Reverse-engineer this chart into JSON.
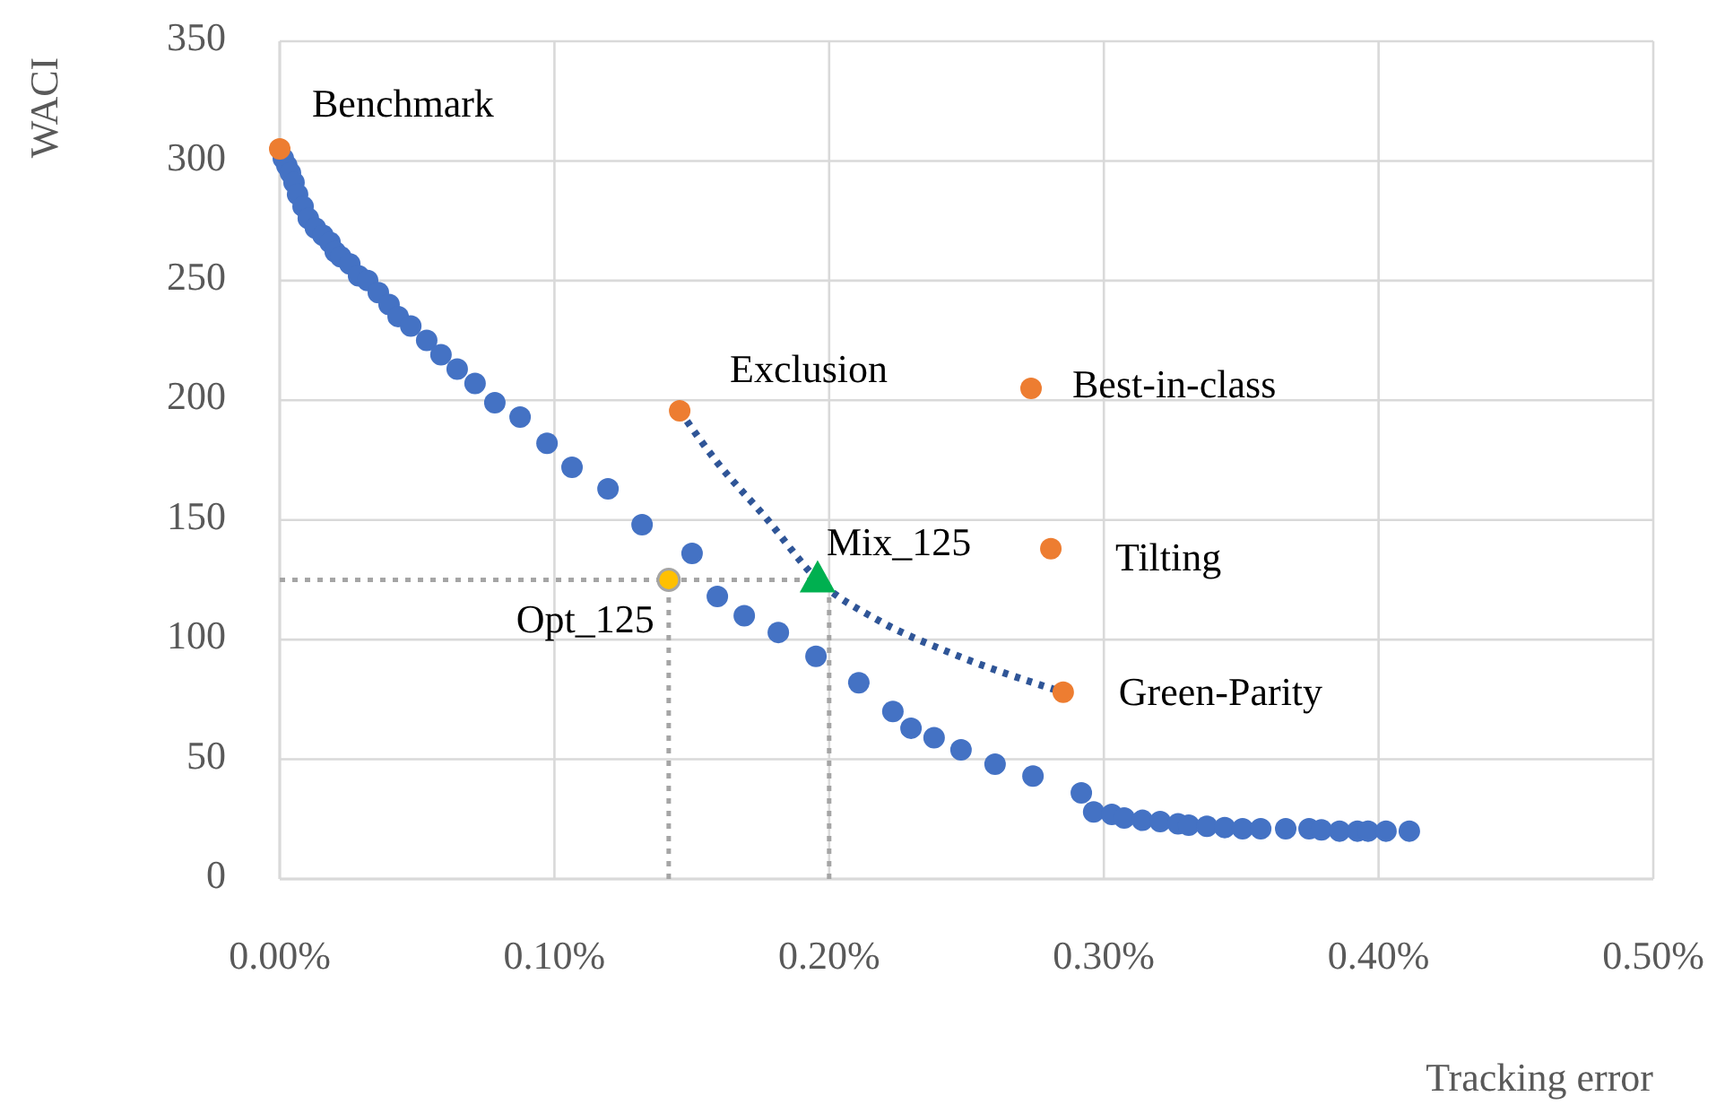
{
  "chart_data": {
    "type": "scatter",
    "xlabel": "Tracking error",
    "ylabel": "WACI",
    "xlim": [
      0,
      0.5
    ],
    "ylim": [
      0,
      350
    ],
    "xticks": [
      {
        "value": 0,
        "label": "0.00%"
      },
      {
        "value": 0.1,
        "label": "0.10%"
      },
      {
        "value": 0.2,
        "label": "0.20%"
      },
      {
        "value": 0.3,
        "label": "0.30%"
      },
      {
        "value": 0.4,
        "label": "0.40%"
      },
      {
        "value": 0.5,
        "label": "0.50%"
      }
    ],
    "yticks": [
      0,
      50,
      100,
      150,
      200,
      250,
      300,
      350
    ],
    "grid": true,
    "series": [
      {
        "marker": "circle",
        "color": "#4472c4",
        "x": [
          0.0013,
          0.0026,
          0.0039,
          0.0052,
          0.0065,
          0.0085,
          0.0104,
          0.013,
          0.0157,
          0.0183,
          0.0202,
          0.0222,
          0.0255,
          0.0287,
          0.032,
          0.0359,
          0.0398,
          0.0431,
          0.0477,
          0.0535,
          0.0587,
          0.0646,
          0.0711,
          0.0783,
          0.0875,
          0.0973,
          0.1064,
          0.1195,
          0.1319,
          0.1501,
          0.1593,
          0.1691,
          0.1815,
          0.1952,
          0.2108,
          0.2232,
          0.2298,
          0.2382,
          0.248,
          0.2604,
          0.2742,
          0.2918,
          0.2963,
          0.3029,
          0.3074,
          0.314,
          0.3205,
          0.327,
          0.3309,
          0.3375,
          0.344,
          0.3505,
          0.3571,
          0.3662,
          0.3747,
          0.3792,
          0.3858,
          0.3923,
          0.3962,
          0.4027,
          0.4112
        ],
        "values": [
          301,
          298,
          295,
          291,
          286,
          281,
          276,
          272,
          269,
          266,
          262,
          260,
          257,
          252,
          250,
          245,
          240,
          235,
          231,
          225,
          219,
          213,
          207,
          199,
          193,
          182,
          172,
          163,
          148,
          136,
          118,
          110,
          103,
          93,
          82,
          70,
          63,
          59,
          54,
          48,
          43,
          36,
          28,
          27,
          25.5,
          24.5,
          24,
          23,
          22.5,
          22,
          21.5,
          21,
          21,
          21,
          21,
          20.5,
          20,
          20,
          20,
          20,
          20
        ]
      },
      {
        "type": "line",
        "marker": "none",
        "line_style": "dotted",
        "color": "#2f5597",
        "x": [
          0.1456,
          0.1593,
          0.1769,
          0.1958,
          0.218,
          0.2441,
          0.2852
        ],
        "values": [
          195.6,
          174,
          151,
          125,
          108,
          94.5,
          78
        ]
      },
      {
        "marker": "circle",
        "color": "#ed7d31",
        "x": [
          0,
          0.1456,
          0.2735,
          0.2807,
          0.2852
        ],
        "values": [
          305,
          195.6,
          205,
          138,
          78
        ]
      },
      {
        "marker": "triangle",
        "color": "#00b050",
        "x": [
          0.1958
        ],
        "values": [
          125
        ]
      },
      {
        "marker": "circle",
        "color": "#ffc000",
        "x": [
          0.1416
        ],
        "values": [
          125
        ]
      }
    ],
    "ref_lines": [
      {
        "axis": "y",
        "value": 125,
        "color": "#a5a5a5",
        "line_style": "dotted"
      },
      {
        "axis": "x",
        "value": 0.1416,
        "color": "#a5a5a5",
        "line_style": "dotted"
      },
      {
        "axis": "x",
        "value": 0.2,
        "color": "#a5a5a5",
        "line_style": "dotted"
      }
    ],
    "annotations": [
      {
        "text": "Benchmark",
        "x": 0,
        "y": 305
      },
      {
        "text": "Exclusion",
        "x": 0.1456,
        "y": 195.6
      },
      {
        "text": "Best-in-class",
        "x": 0.2735,
        "y": 205
      },
      {
        "text": "Tilting",
        "x": 0.2807,
        "y": 138
      },
      {
        "text": "Green-Parity",
        "x": 0.2852,
        "y": 78
      },
      {
        "text": "Mix_125",
        "x": 0.1958,
        "y": 125
      },
      {
        "text": "Opt_125",
        "x": 0.1416,
        "y": 125
      }
    ]
  }
}
